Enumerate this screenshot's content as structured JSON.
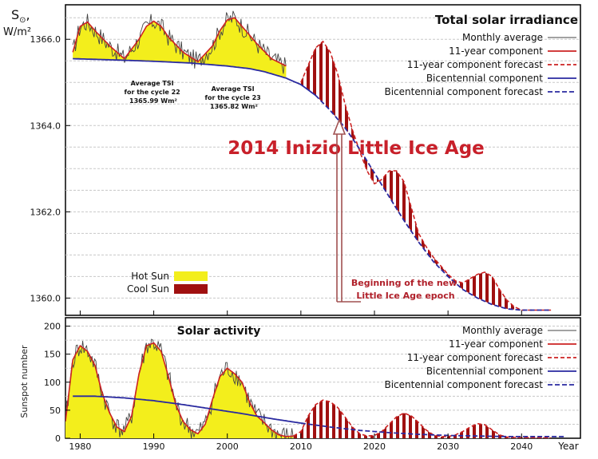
{
  "colors": {
    "monthly": "#444444",
    "component11": "#cc2222",
    "bicentennial": "#2a2aa0",
    "hot_sun": "#f3ee1c",
    "cool_sun": "#a01010",
    "headline": "#c8202a",
    "arrow": "#a05050",
    "grid": "#c8c8c8"
  },
  "chart_data": [
    {
      "type": "line",
      "title": "Total solar irradiance",
      "ylabel_symbol": "S",
      "ylabel_unit": "W/m²",
      "ylim": [
        1359.6,
        1366.8
      ],
      "xlim": [
        1978,
        2048
      ],
      "yticks": [
        "1360.0",
        "1362.0",
        "1364.0",
        "1366.0"
      ],
      "ytick_values": [
        1360.0,
        1362.0,
        1364.0,
        1366.0
      ],
      "grid": true,
      "legend_position": "top-right",
      "legend": [
        "Monthly average",
        "11-year component",
        "11-year component forecast",
        "Bicentennial component",
        "Bicentennial component forecast"
      ],
      "fill_legend": [
        "Hot Sun",
        "Cool Sun"
      ],
      "series": [
        {
          "name": "Bicentennial component",
          "x": [
            1979,
            1985,
            1990,
            1995,
            2000,
            2003,
            2005,
            2008,
            2010,
            2012
          ],
          "values": [
            1365.55,
            1365.52,
            1365.49,
            1365.45,
            1365.38,
            1365.32,
            1365.25,
            1365.1,
            1364.95,
            1364.7
          ]
        },
        {
          "name": "Bicentennial component forecast",
          "x": [
            2012,
            2014,
            2016,
            2018,
            2020,
            2022,
            2024,
            2026,
            2028,
            2030,
            2032,
            2034,
            2036,
            2038,
            2040,
            2042,
            2044
          ],
          "values": [
            1364.7,
            1364.35,
            1363.95,
            1363.45,
            1362.9,
            1362.35,
            1361.8,
            1361.3,
            1360.85,
            1360.5,
            1360.2,
            1360.0,
            1359.85,
            1359.75,
            1359.72,
            1359.72,
            1359.72
          ]
        },
        {
          "name": "11-year component",
          "x": [
            1979,
            1980,
            1981,
            1982,
            1984,
            1986,
            1988,
            1989,
            1990,
            1991,
            1992,
            1994,
            1996,
            1998,
            1999,
            2000,
            2001,
            2002,
            2004,
            2006,
            2008
          ],
          "values": [
            1365.7,
            1366.3,
            1366.4,
            1366.2,
            1365.85,
            1365.55,
            1366.0,
            1366.3,
            1366.42,
            1366.3,
            1366.05,
            1365.7,
            1365.48,
            1365.85,
            1366.2,
            1366.45,
            1366.5,
            1366.3,
            1365.9,
            1365.55,
            1365.38
          ]
        },
        {
          "name": "11-year component forecast",
          "x": [
            2010,
            2011,
            2012,
            2013,
            2014,
            2015,
            2016,
            2017,
            2018,
            2019,
            2020,
            2021,
            2022,
            2023,
            2024,
            2025,
            2026,
            2027,
            2028,
            2029,
            2030,
            2031,
            2032,
            2033,
            2034,
            2035,
            2036,
            2037,
            2038,
            2039,
            2040,
            2042,
            2044
          ],
          "values": [
            1365.0,
            1365.4,
            1365.8,
            1365.95,
            1365.7,
            1365.2,
            1364.5,
            1363.9,
            1363.4,
            1362.95,
            1362.65,
            1362.75,
            1362.95,
            1362.95,
            1362.7,
            1362.1,
            1361.5,
            1361.2,
            1360.95,
            1360.75,
            1360.55,
            1360.4,
            1360.35,
            1360.45,
            1360.55,
            1360.6,
            1360.5,
            1360.2,
            1359.95,
            1359.8,
            1359.72,
            1359.72,
            1359.72
          ]
        }
      ],
      "annotations": [
        {
          "text": [
            "Average TSI",
            "for the cycle 22",
            "1365.99 Wm²"
          ]
        },
        {
          "text": [
            "Average TSI",
            "for the cycle 23",
            "1365.82 Wm²"
          ]
        },
        {
          "text": "2014 Inizio Little Ice Age"
        },
        {
          "text": [
            "Beginning of the new",
            "Little Ice Age epoch"
          ]
        }
      ]
    },
    {
      "type": "line",
      "title": "Solar activity",
      "ylabel": "Sunspot number",
      "ylim": [
        0,
        215
      ],
      "xlim": [
        1978,
        2048
      ],
      "yticks": [
        "0",
        "50",
        "100",
        "150",
        "200"
      ],
      "ytick_values": [
        0,
        50,
        100,
        150,
        200
      ],
      "xticks": [
        "1980",
        "1990",
        "2000",
        "2010",
        "2020",
        "2030",
        "2040"
      ],
      "xtick_values": [
        1980,
        1990,
        2000,
        2010,
        2020,
        2030,
        2040
      ],
      "xlabel": "Year",
      "grid": true,
      "legend_position": "top-right",
      "legend": [
        "Monthly average",
        "11-year component",
        "11-year component forecast",
        "Bicentennial component",
        "Bicentennial component forecast"
      ],
      "series": [
        {
          "name": "11-year component",
          "x": [
            1978,
            1979,
            1980,
            1981,
            1982,
            1983,
            1984,
            1985,
            1986,
            1987,
            1988,
            1989,
            1990,
            1991,
            1992,
            1993,
            1994,
            1995,
            1996,
            1997,
            1998,
            1999,
            2000,
            2001,
            2002,
            2003,
            2004,
            2005,
            2006,
            2007,
            2008,
            2009
          ],
          "values": [
            30,
            140,
            165,
            155,
            130,
            80,
            45,
            20,
            12,
            40,
            115,
            165,
            170,
            155,
            110,
            60,
            30,
            15,
            8,
            25,
            70,
            110,
            125,
            115,
            100,
            65,
            40,
            28,
            15,
            6,
            3,
            4
          ]
        },
        {
          "name": "11-year component forecast",
          "x": [
            2009,
            2010,
            2011,
            2012,
            2013,
            2014,
            2015,
            2016,
            2017,
            2018,
            2019,
            2020,
            2021,
            2022,
            2023,
            2024,
            2025,
            2026,
            2027,
            2028,
            2029,
            2030,
            2031,
            2032,
            2033,
            2034,
            2035,
            2036,
            2037,
            2038,
            2040,
            2042,
            2044
          ],
          "values": [
            4,
            12,
            40,
            60,
            68,
            65,
            55,
            38,
            20,
            8,
            4,
            5,
            12,
            25,
            38,
            45,
            40,
            28,
            15,
            6,
            3,
            3,
            6,
            12,
            20,
            26,
            24,
            15,
            6,
            2,
            1,
            1,
            1
          ]
        },
        {
          "name": "Bicentennial component",
          "x": [
            1979,
            1982,
            1986,
            1990,
            1994,
            1998,
            2002,
            2006,
            2010
          ],
          "values": [
            75,
            75,
            72,
            67,
            60,
            52,
            44,
            35,
            27
          ]
        },
        {
          "name": "Bicentennial component forecast",
          "x": [
            2010,
            2014,
            2018,
            2022,
            2026,
            2030,
            2034,
            2038,
            2042,
            2046
          ],
          "values": [
            27,
            20,
            14,
            10,
            7,
            5,
            4,
            3,
            3,
            3
          ]
        }
      ]
    }
  ]
}
